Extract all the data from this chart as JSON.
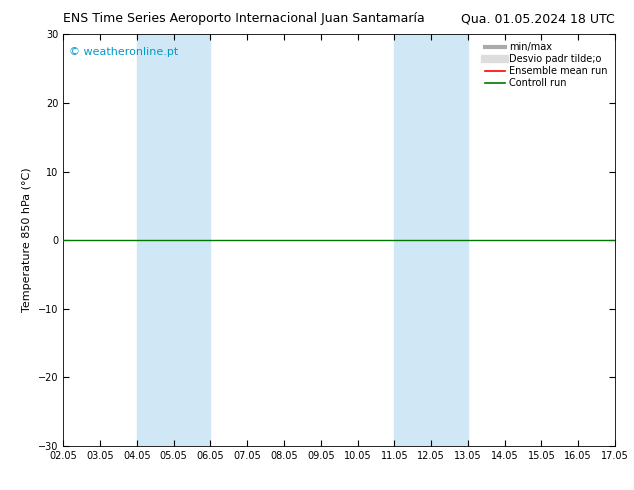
{
  "title_left": "ENS Time Series Aeroporto Internacional Juan Santamaría",
  "title_right": "Qua. 01.05.2024 18 UTC",
  "ylabel": "Temperature 850 hPa (°C)",
  "watermark": "© weatheronline.pt",
  "watermark_color": "#0099CC",
  "ylim": [
    -30,
    30
  ],
  "yticks": [
    -30,
    -20,
    -10,
    0,
    10,
    20,
    30
  ],
  "xtick_labels": [
    "02.05",
    "03.05",
    "04.05",
    "05.05",
    "06.05",
    "07.05",
    "08.05",
    "09.05",
    "10.05",
    "11.05",
    "12.05",
    "13.05",
    "14.05",
    "15.05",
    "16.05",
    "17.05"
  ],
  "shade_bands": [
    {
      "xstart": 2,
      "xend": 4,
      "color": "#d0e8f5"
    },
    {
      "xstart": 9,
      "xend": 11,
      "color": "#d0e8f5"
    }
  ],
  "zero_line_y": 0,
  "zero_line_color": "#007700",
  "legend_items": [
    {
      "label": "min/max",
      "color": "#aaaaaa",
      "lw": 3,
      "style": "-"
    },
    {
      "label": "Desvio padr tilde;o",
      "color": "#dddddd",
      "lw": 6,
      "style": "-"
    },
    {
      "label": "Ensemble mean run",
      "color": "#ff0000",
      "lw": 1.2,
      "style": "-"
    },
    {
      "label": "Controll run",
      "color": "#007700",
      "lw": 1.2,
      "style": "-"
    }
  ],
  "bg_color": "#ffffff",
  "plot_bg_color": "#ffffff",
  "title_fontsize": 9,
  "axis_fontsize": 8,
  "tick_fontsize": 7,
  "legend_fontsize": 7
}
